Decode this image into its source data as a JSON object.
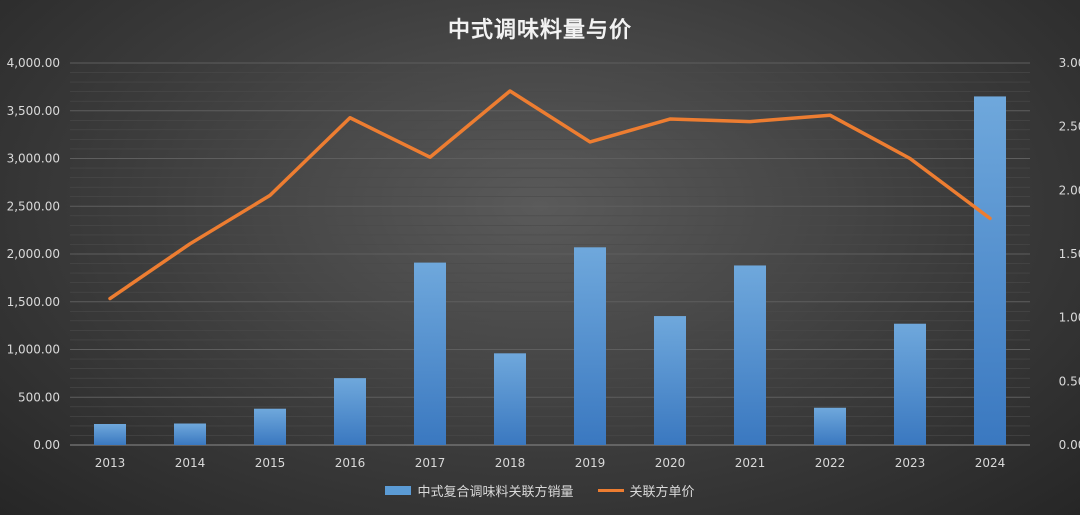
{
  "chart_data": {
    "type": "bar",
    "title": "中式调味料量与价",
    "categories": [
      "2013",
      "2014",
      "2015",
      "2016",
      "2017",
      "2018",
      "2019",
      "2020",
      "2021",
      "2022",
      "2023",
      "2024"
    ],
    "series": [
      {
        "name": "中式复合调味料关联方销量",
        "type": "bar",
        "axis": "left",
        "color": "#5b9bd5",
        "values": [
          220,
          225,
          380,
          700,
          1910,
          960,
          2070,
          1350,
          1880,
          390,
          1270,
          3650
        ]
      },
      {
        "name": "关联方单价",
        "type": "line",
        "axis": "right",
        "color": "#ed7d31",
        "values": [
          1.15,
          1.58,
          1.96,
          2.57,
          2.26,
          2.78,
          2.38,
          2.56,
          2.54,
          2.59,
          2.25,
          1.78
        ]
      }
    ],
    "y_left": {
      "ylim": [
        0,
        4000
      ],
      "ticks": [
        "0.00",
        "500.00",
        "1,000.00",
        "1,500.00",
        "2,000.00",
        "2,500.00",
        "3,000.00",
        "3,500.00",
        "4,000.00"
      ]
    },
    "y_right": {
      "ylim": [
        0,
        3
      ],
      "ticks": [
        "0.00",
        "0.50",
        "1.00",
        "1.50",
        "2.00",
        "2.50",
        "3.00"
      ]
    },
    "grid": true,
    "legend": "bottom"
  }
}
